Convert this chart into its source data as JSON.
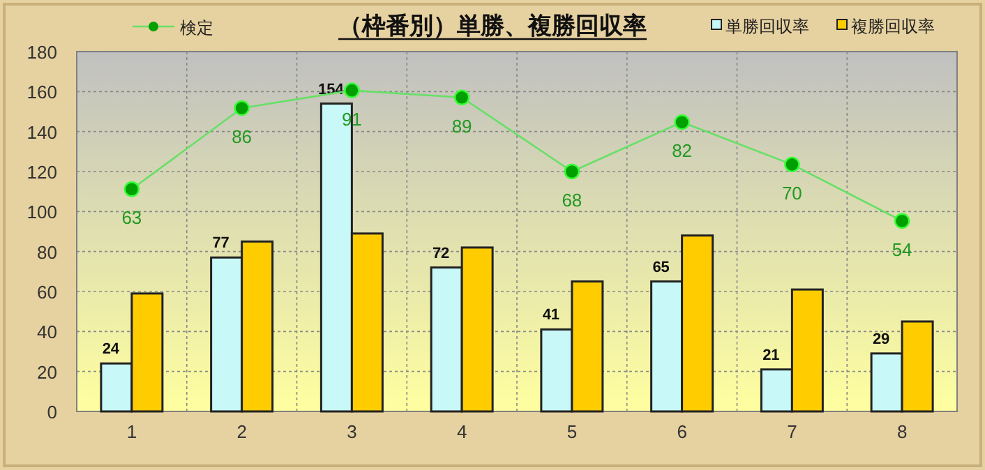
{
  "chart_data": {
    "type": "bar",
    "title": "（枠番別）単勝、複勝回収率",
    "categories": [
      "1",
      "2",
      "3",
      "4",
      "5",
      "6",
      "7",
      "8"
    ],
    "series": [
      {
        "name": "単勝回収率",
        "color": "#c8f8f8",
        "values": [
          24,
          77,
          154,
          72,
          41,
          65,
          21,
          29
        ],
        "value_labels": [
          "24",
          "77",
          "154",
          "72",
          "41",
          "65",
          "21",
          "29"
        ]
      },
      {
        "name": "複勝回収率",
        "color": "#ffcc00",
        "values": [
          59,
          85,
          89,
          82,
          65,
          88,
          61,
          45
        ]
      },
      {
        "name": "検定",
        "type": "line",
        "axis": "y2",
        "color": "#00a000",
        "marker": "circle",
        "values": [
          63,
          86,
          91,
          89,
          68,
          82,
          70,
          54
        ],
        "value_labels": [
          "63",
          "86",
          "91",
          "89",
          "68",
          "82",
          "70",
          "54"
        ]
      }
    ],
    "ylim": [
      0,
      180
    ],
    "yticks": [
      0,
      20,
      40,
      60,
      80,
      100,
      120,
      140,
      160,
      180
    ],
    "y2lim": [
      0,
      102
    ],
    "grid": true,
    "legend": "top"
  }
}
